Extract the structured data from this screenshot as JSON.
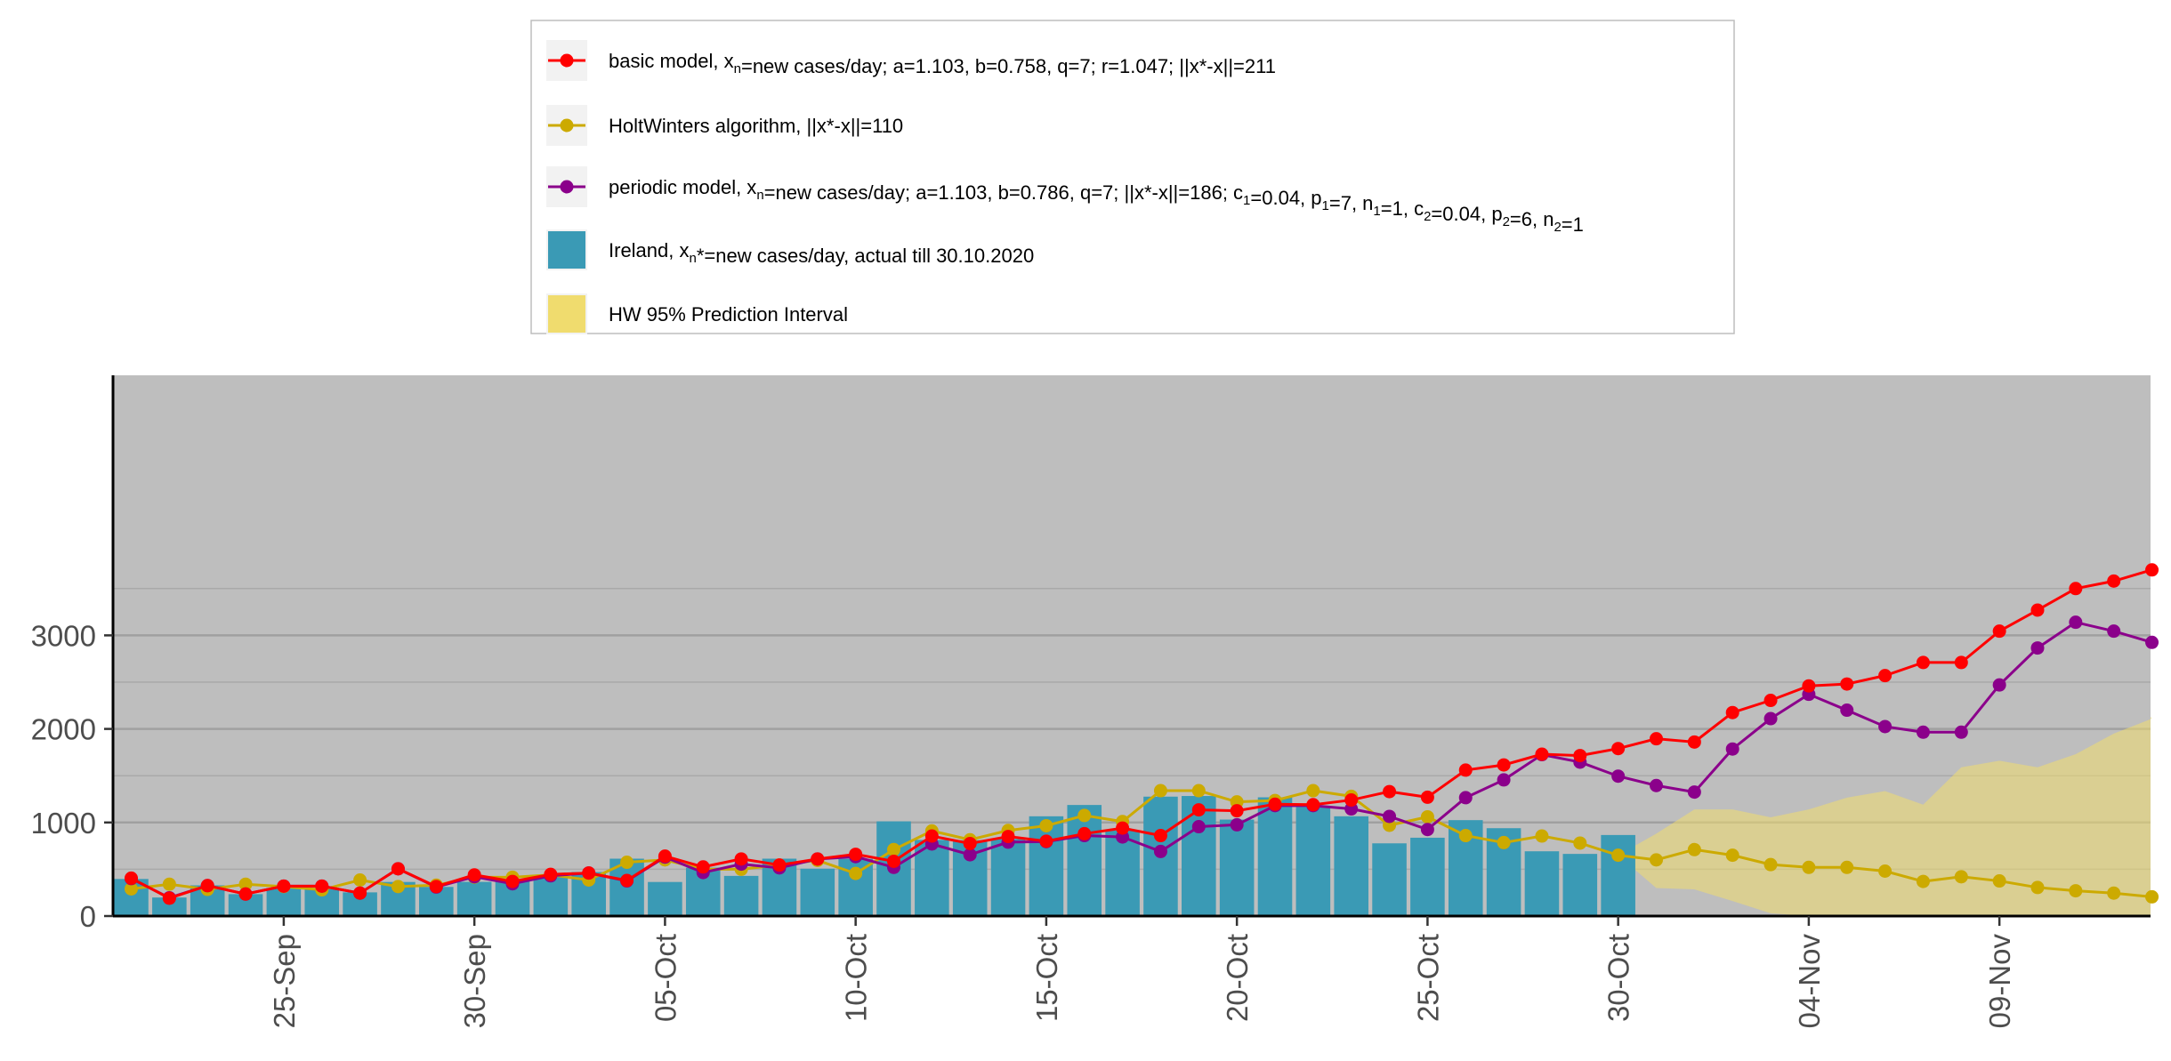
{
  "chart_data": {
    "type": "bar+line",
    "title": "",
    "xlabel": "",
    "ylabel": "",
    "ylim": [
      0,
      3700
    ],
    "y_ticks": [
      "0",
      "1000",
      "2000",
      "3000"
    ],
    "x_ticks": [
      "25-Sep",
      "30-Sep",
      "05-Oct",
      "10-Oct",
      "15-Oct",
      "20-Oct",
      "25-Oct",
      "30-Oct",
      "04-Nov",
      "09-Nov"
    ],
    "x_ticks_day_index": [
      4,
      9,
      14,
      19,
      24,
      29,
      34,
      39,
      44,
      49
    ],
    "grid": true,
    "legend_position": "top",
    "dates": [
      "21-Sep",
      "22-Sep",
      "23-Sep",
      "24-Sep",
      "25-Sep",
      "26-Sep",
      "27-Sep",
      "28-Sep",
      "29-Sep",
      "30-Sep",
      "01-Oct",
      "02-Oct",
      "03-Oct",
      "04-Oct",
      "05-Oct",
      "06-Oct",
      "07-Oct",
      "08-Oct",
      "09-Oct",
      "10-Oct",
      "11-Oct",
      "12-Oct",
      "13-Oct",
      "14-Oct",
      "15-Oct",
      "16-Oct",
      "17-Oct",
      "18-Oct",
      "19-Oct",
      "20-Oct",
      "21-Oct",
      "22-Oct",
      "23-Oct",
      "24-Oct",
      "25-Oct",
      "26-Oct",
      "27-Oct",
      "28-Oct",
      "29-Oct",
      "30-Oct",
      "31-Oct",
      "01-Nov",
      "02-Nov",
      "03-Nov",
      "04-Nov",
      "05-Nov",
      "06-Nov",
      "07-Nov",
      "08-Nov",
      "09-Nov",
      "10-Nov",
      "11-Nov",
      "12-Nov",
      "13-Nov"
    ],
    "bars": {
      "name": "Ireland",
      "color": "#3a9ab5",
      "values": [
        396,
        198,
        328,
        234,
        300,
        287,
        253,
        364,
        311,
        365,
        375,
        430,
        470,
        613,
        364,
        517,
        429,
        613,
        506,
        611,
        1012,
        814,
        811,
        824,
        1066,
        1187,
        915,
        1276,
        1283,
        1031,
        1269,
        1167,
        1066,
        777,
        837,
        1025,
        939,
        692,
        664,
        866
      ]
    },
    "series": [
      {
        "name": "basic model",
        "color": "#ff0000",
        "values": [
          405,
          190,
          325,
          235,
          320,
          320,
          245,
          505,
          315,
          440,
          370,
          445,
          460,
          380,
          640,
          525,
          610,
          545,
          610,
          660,
          585,
          855,
          775,
          850,
          800,
          880,
          940,
          860,
          1135,
          1125,
          1195,
          1190,
          1240,
          1330,
          1270,
          1560,
          1615,
          1730,
          1715,
          1790,
          1895,
          1860,
          2175,
          2305,
          2460,
          2480,
          2570,
          2710,
          2710,
          3045,
          3270,
          3500,
          3580,
          3700
        ]
      },
      {
        "name": "HoltWinters algorithm",
        "color": "#ccaa00",
        "values": [
          290,
          340,
          285,
          340,
          315,
          280,
          385,
          315,
          330,
          415,
          415,
          440,
          385,
          575,
          600,
          500,
          500,
          545,
          595,
          455,
          710,
          910,
          815,
          915,
          965,
          1075,
          1010,
          1340,
          1340,
          1220,
          1235,
          1340,
          1280,
          970,
          1060,
          860,
          785,
          855,
          780,
          650,
          600,
          710,
          650,
          550,
          520,
          520,
          480,
          370,
          420,
          375,
          305,
          270,
          245,
          205
        ]
      },
      {
        "name": "periodic model",
        "color": "#8b008b",
        "values": [
          400,
          195,
          325,
          235,
          320,
          320,
          245,
          505,
          310,
          420,
          345,
          430,
          460,
          375,
          630,
          465,
          555,
          515,
          610,
          635,
          520,
          770,
          655,
          790,
          795,
          860,
          845,
          690,
          955,
          975,
          1180,
          1180,
          1145,
          1065,
          925,
          1265,
          1455,
          1725,
          1645,
          1495,
          1395,
          1325,
          1785,
          2110,
          2370,
          2200,
          2025,
          1965,
          1965,
          2470,
          2865,
          3140,
          3045,
          2925
        ]
      }
    ],
    "hw_interval": {
      "name": "HW 95% Prediction Interval",
      "color": "#f0dc6e",
      "start_index": 39,
      "lower": [
        650,
        300,
        285,
        160,
        30,
        0,
        0,
        0,
        0,
        0,
        0,
        0,
        0,
        0,
        0
      ],
      "upper": [
        650,
        880,
        1140,
        1140,
        1055,
        1140,
        1265,
        1335,
        1190,
        1590,
        1660,
        1590,
        1730,
        1950,
        2110
      ]
    },
    "legend": [
      {
        "kind": "line",
        "color": "#ff0000",
        "text_before": "basic model,  x",
        "sub": "n",
        "text_after": "=new cases/day; a=1.103, b=0.758, q=7;  r=1.047; ||x*-x||=211"
      },
      {
        "kind": "line",
        "color": "#ccaa00",
        "text_before": "HoltWinters algorithm,  ||x*-x||=110",
        "sub": "",
        "text_after": ""
      },
      {
        "kind": "line",
        "color": "#8b008b",
        "text_before": "periodic model, x",
        "sub": "n",
        "text_after": "=new cases/day; a=1.103, b=0.786, q=7; ||x*-x||=186; c",
        "rest": [
          [
            "1",
            "=0.04, p"
          ],
          [
            "1",
            "=7, n"
          ],
          [
            "1",
            "=1, c"
          ],
          [
            "2",
            "=0.04, p"
          ],
          [
            "2",
            "=6, n"
          ],
          [
            "2",
            "=1"
          ]
        ]
      },
      {
        "kind": "bar",
        "color": "#3a9ab5",
        "text_before": "Ireland, x",
        "sub": "n",
        "text_after": "*=new cases/day, actual till 30.10.2020"
      },
      {
        "kind": "fill",
        "color": "#f0dc6e",
        "text_before": "HW 95% Prediction Interval",
        "sub": "",
        "text_after": ""
      }
    ]
  }
}
